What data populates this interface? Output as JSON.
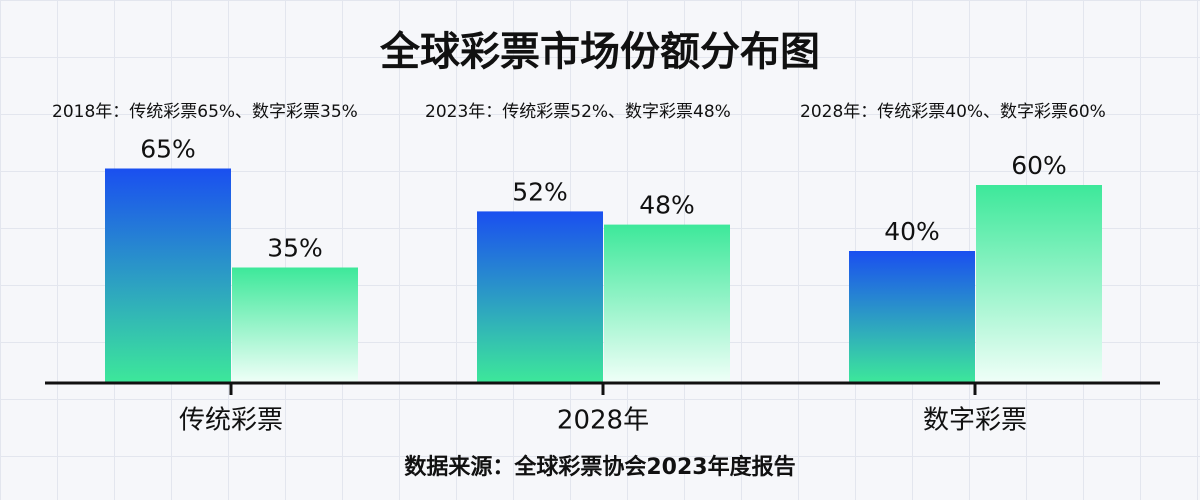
{
  "chart_data": {
    "type": "bar",
    "title": "全球彩票市场份额分布图",
    "annotations": [
      "2018年：传统彩票65%、数字彩票35%",
      "2023年：传统彩票52%、数字彩票48%",
      "2028年：传统彩票40%、数字彩票60%"
    ],
    "categories": [
      "传统彩票",
      "2028年",
      "数字彩票"
    ],
    "series": [
      {
        "color": "#1a4ff0",
        "values": [
          65,
          52,
          40
        ],
        "value_labels": [
          "65%",
          "52%",
          "40%"
        ]
      },
      {
        "color": "#3de89a",
        "values": [
          35,
          48,
          60
        ],
        "value_labels": [
          "35%",
          "48%",
          "60%"
        ]
      }
    ],
    "ylim": [
      0,
      70
    ],
    "source": "数据来源：全球彩票协会2023年度报告"
  }
}
